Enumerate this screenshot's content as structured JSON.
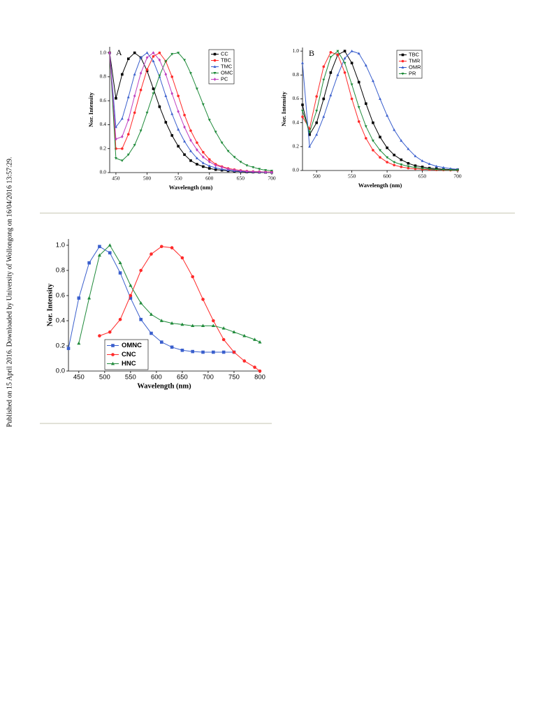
{
  "side_note": "Published on 15 April 2016. Downloaded by University of Wollongong on 16/04/2016 13:57:29.",
  "chart_data": [
    {
      "type": "line",
      "annotation": "A",
      "xlabel": "Wavelength (nm)",
      "ylabel": "Nor. Intensity",
      "legend": "upper right",
      "xlim": [
        440,
        700
      ],
      "ylim": [
        0,
        1.05
      ],
      "xticks": [
        450,
        500,
        550,
        600,
        650,
        700
      ],
      "yticks": [
        {
          "value": 0,
          "label": "0.0"
        },
        0.2,
        0.4,
        0.6,
        0.8,
        {
          "value": 1,
          "label": "1.0"
        }
      ],
      "x": [
        440,
        450,
        460,
        470,
        480,
        490,
        500,
        510,
        520,
        530,
        540,
        550,
        560,
        570,
        580,
        590,
        600,
        610,
        620,
        630,
        640,
        650,
        660,
        670,
        680,
        690,
        700
      ],
      "series": [
        {
          "name": "CC",
          "color": "#000000",
          "marker": "square",
          "values": [
            1.0,
            0.62,
            0.82,
            0.95,
            1.0,
            0.96,
            0.85,
            0.7,
            0.55,
            0.42,
            0.31,
            0.22,
            0.15,
            0.1,
            0.07,
            0.05,
            0.035,
            0.025,
            0.02,
            0.015,
            0.01,
            0.008,
            0.005,
            0.004,
            0.003,
            0.002,
            0.002
          ]
        },
        {
          "name": "TBC",
          "color": "#ff2a2a",
          "marker": "circle",
          "values": [
            1.0,
            0.2,
            0.2,
            0.32,
            0.5,
            0.69,
            0.86,
            0.97,
            1.0,
            0.93,
            0.8,
            0.64,
            0.48,
            0.35,
            0.25,
            0.17,
            0.11,
            0.07,
            0.05,
            0.035,
            0.025,
            0.018,
            0.012,
            0.009,
            0.007,
            0.005,
            0.004
          ]
        },
        {
          "name": "TMC",
          "color": "#3a5fcd",
          "marker": "triangle",
          "values": [
            1.0,
            0.38,
            0.45,
            0.63,
            0.82,
            0.96,
            1.0,
            0.93,
            0.8,
            0.64,
            0.49,
            0.36,
            0.26,
            0.18,
            0.12,
            0.08,
            0.055,
            0.04,
            0.028,
            0.02,
            0.014,
            0.01,
            0.008,
            0.006,
            0.004,
            0.003,
            0.002
          ]
        },
        {
          "name": "OMC",
          "color": "#1f8a3a",
          "marker": "triangle-down",
          "values": [
            1.0,
            0.12,
            0.1,
            0.15,
            0.23,
            0.35,
            0.5,
            0.66,
            0.81,
            0.93,
            0.99,
            1.0,
            0.94,
            0.83,
            0.7,
            0.57,
            0.44,
            0.34,
            0.25,
            0.18,
            0.13,
            0.09,
            0.06,
            0.045,
            0.03,
            0.02,
            0.015
          ]
        },
        {
          "name": "PC",
          "color": "#c040c0",
          "marker": "diamond",
          "values": [
            1.0,
            0.28,
            0.3,
            0.44,
            0.64,
            0.83,
            0.96,
            1.0,
            0.94,
            0.82,
            0.66,
            0.51,
            0.38,
            0.27,
            0.19,
            0.13,
            0.09,
            0.06,
            0.045,
            0.03,
            0.022,
            0.015,
            0.01,
            0.008,
            0.006,
            0.004,
            0.003
          ]
        }
      ]
    },
    {
      "type": "line",
      "annotation": "B",
      "xlabel": "Wavelength (nm)",
      "ylabel": "Nor. Intensity",
      "legend": "upper right",
      "xlim": [
        480,
        700
      ],
      "ylim": [
        0,
        1.03
      ],
      "xticks": [
        500,
        550,
        600,
        650,
        700
      ],
      "yticks": [
        {
          "value": 0,
          "label": "0.0"
        },
        0.2,
        0.4,
        0.6,
        0.8,
        {
          "value": 1,
          "label": "1.0"
        }
      ],
      "x": [
        480,
        490,
        500,
        510,
        520,
        530,
        540,
        550,
        560,
        570,
        580,
        590,
        600,
        610,
        620,
        630,
        640,
        650,
        660,
        670,
        680,
        690,
        700
      ],
      "series": [
        {
          "name": "TBC",
          "color": "#000000",
          "marker": "square",
          "values": [
            0.55,
            0.3,
            0.4,
            0.6,
            0.82,
            0.97,
            1.0,
            0.9,
            0.74,
            0.56,
            0.4,
            0.28,
            0.19,
            0.13,
            0.09,
            0.06,
            0.04,
            0.03,
            0.02,
            0.015,
            0.01,
            0.008,
            0.006
          ]
        },
        {
          "name": "TMR",
          "color": "#ff2a2a",
          "marker": "circle",
          "values": [
            0.45,
            0.35,
            0.62,
            0.87,
            0.99,
            0.97,
            0.82,
            0.6,
            0.41,
            0.27,
            0.17,
            0.11,
            0.07,
            0.045,
            0.03,
            0.02,
            0.014,
            0.01,
            0.007,
            0.005,
            0.004,
            0.003,
            0.002
          ]
        },
        {
          "name": "OMR",
          "color": "#3a5fcd",
          "marker": "triangle",
          "values": [
            0.9,
            0.2,
            0.3,
            0.45,
            0.63,
            0.8,
            0.94,
            1.0,
            0.98,
            0.88,
            0.75,
            0.6,
            0.46,
            0.34,
            0.25,
            0.18,
            0.12,
            0.08,
            0.055,
            0.035,
            0.025,
            0.015,
            0.01
          ]
        },
        {
          "name": "PR",
          "color": "#1f8a3a",
          "marker": "triangle-down",
          "values": [
            0.5,
            0.32,
            0.5,
            0.76,
            0.95,
            1.0,
            0.9,
            0.72,
            0.53,
            0.37,
            0.25,
            0.17,
            0.11,
            0.07,
            0.05,
            0.035,
            0.025,
            0.017,
            0.012,
            0.008,
            0.006,
            0.004,
            0.003
          ]
        }
      ]
    },
    {
      "type": "line",
      "xlabel": "Wavelength (nm)",
      "ylabel": "Nor. Intensity",
      "legend": "lower left",
      "xlim": [
        430,
        800
      ],
      "ylim": [
        0,
        1.05
      ],
      "xticks": [
        450,
        500,
        550,
        600,
        650,
        700,
        750,
        800
      ],
      "yticks": [
        {
          "value": 0,
          "label": "0.0"
        },
        0.2,
        0.4,
        0.6,
        0.8,
        {
          "value": 1,
          "label": "1.0"
        }
      ],
      "x": [
        430,
        450,
        470,
        490,
        510,
        530,
        550,
        570,
        590,
        610,
        630,
        650,
        670,
        690,
        710,
        730,
        750,
        770,
        790,
        800
      ],
      "series": [
        {
          "name": "OMNC",
          "color": "#3a5fcd",
          "marker": "square",
          "values": [
            0.18,
            0.58,
            0.86,
            0.99,
            0.94,
            0.78,
            0.58,
            0.41,
            0.3,
            0.23,
            0.19,
            0.165,
            0.155,
            0.15,
            0.15,
            0.15,
            0.15,
            null,
            null,
            null
          ]
        },
        {
          "name": "CNC",
          "color": "#ff2a2a",
          "marker": "circle",
          "values": [
            null,
            null,
            null,
            0.28,
            0.31,
            0.41,
            0.6,
            0.8,
            0.93,
            0.99,
            0.98,
            0.9,
            0.75,
            0.57,
            0.4,
            0.25,
            0.15,
            0.08,
            0.03,
            0.0
          ]
        },
        {
          "name": "HNC",
          "color": "#1f8a3a",
          "marker": "triangle",
          "values": [
            null,
            0.22,
            0.58,
            0.92,
            1.0,
            0.86,
            0.68,
            0.54,
            0.45,
            0.4,
            0.38,
            0.37,
            0.36,
            0.36,
            0.36,
            0.34,
            0.31,
            0.28,
            0.25,
            0.23
          ]
        }
      ]
    }
  ]
}
